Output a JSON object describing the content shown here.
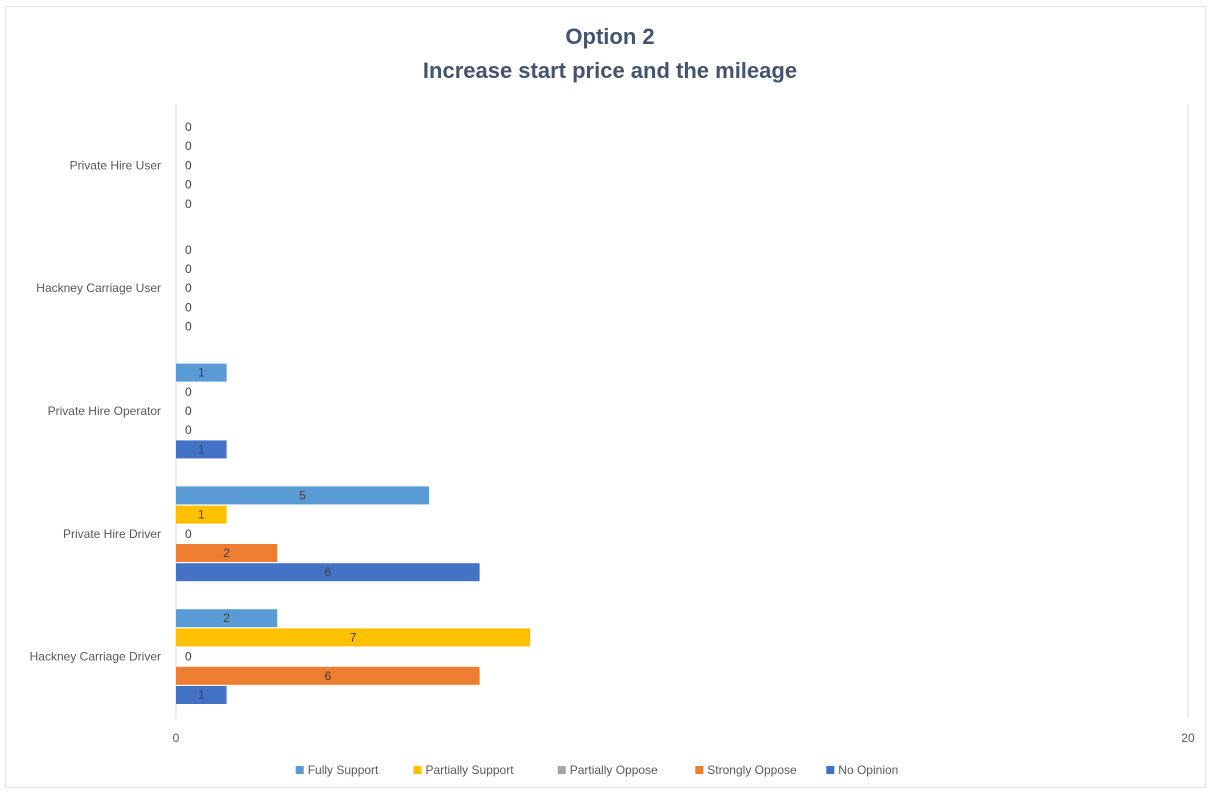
{
  "chart_data": {
    "type": "bar",
    "orientation": "horizontal",
    "title": "Option 2",
    "subtitle": "Increase start price and the mileage",
    "xlim": [
      0,
      20
    ],
    "x_ticks": [
      "0",
      "20"
    ],
    "grid": false,
    "legend_position": "bottom",
    "categories": [
      "Hackney Carriage Driver",
      "Private Hire Driver",
      "Private Hire Operator",
      "Hackney Carriage User",
      "Private Hire User"
    ],
    "series": [
      {
        "name": "Fully Support",
        "color": "#5B9BD5",
        "values": [
          2,
          5,
          1,
          0,
          0
        ]
      },
      {
        "name": "Partially Support",
        "color": "#FFC000",
        "values": [
          7,
          1,
          0,
          0,
          0
        ]
      },
      {
        "name": "Partially Oppose",
        "color": "#A5A5A5",
        "values": [
          0,
          0,
          0,
          0,
          0
        ]
      },
      {
        "name": "Strongly Oppose",
        "color": "#ED7D31",
        "values": [
          6,
          2,
          0,
          0,
          0
        ]
      },
      {
        "name": "No Opinion",
        "color": "#4472C4",
        "values": [
          1,
          6,
          1,
          0,
          0
        ]
      }
    ]
  }
}
